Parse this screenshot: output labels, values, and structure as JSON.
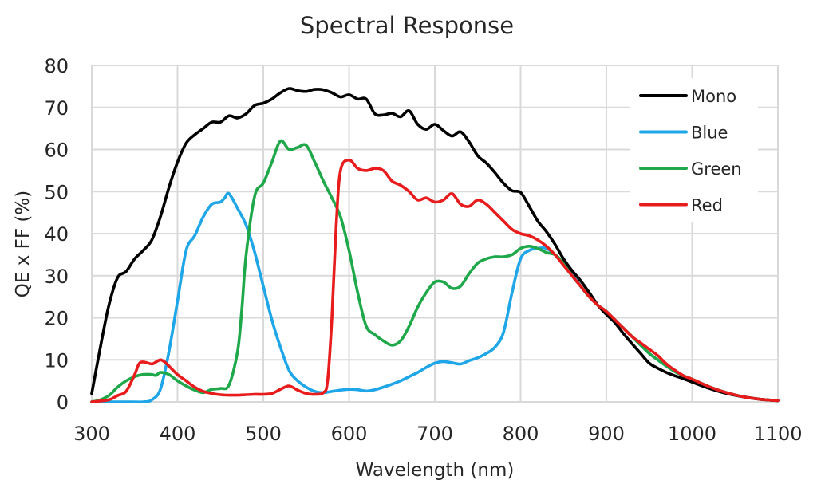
{
  "chart_data": {
    "type": "line",
    "title": "Spectral Response",
    "xlabel": "Wavelength (nm)",
    "ylabel": "QE x FF (%)",
    "xlim": [
      300,
      1100
    ],
    "ylim": [
      0,
      80
    ],
    "xticks": [
      "300",
      "400",
      "500",
      "600",
      "700",
      "800",
      "900",
      "1000",
      "1100"
    ],
    "yticks": [
      "0",
      "10",
      "20",
      "30",
      "40",
      "50",
      "60",
      "70",
      "80"
    ],
    "grid": true,
    "legend_position": "top-right",
    "series": [
      {
        "name": "Mono",
        "color": "#000000",
        "x": [
          300,
          310,
          320,
          330,
          340,
          350,
          360,
          370,
          380,
          390,
          400,
          410,
          420,
          430,
          440,
          450,
          460,
          470,
          480,
          490,
          500,
          510,
          520,
          530,
          540,
          550,
          560,
          570,
          580,
          590,
          600,
          610,
          620,
          630,
          640,
          650,
          660,
          670,
          680,
          690,
          700,
          710,
          720,
          730,
          740,
          750,
          760,
          770,
          780,
          790,
          800,
          810,
          820,
          830,
          840,
          850,
          860,
          870,
          880,
          890,
          900,
          910,
          920,
          930,
          940,
          950,
          960,
          970,
          980,
          990,
          1000,
          1020,
          1040,
          1060,
          1080,
          1100
        ],
        "y": [
          2,
          13,
          23,
          29.5,
          31,
          34,
          36,
          38.5,
          44,
          51,
          57,
          61.5,
          63.5,
          65,
          66.5,
          66.5,
          68,
          67.5,
          68.5,
          70.5,
          71,
          72,
          73.5,
          74.5,
          74,
          73.8,
          74.3,
          74.2,
          73.5,
          72.5,
          73,
          72,
          72,
          68.5,
          68.2,
          68.6,
          67.8,
          69.2,
          66,
          64.8,
          66,
          64.5,
          63.2,
          64.2,
          61.8,
          58.5,
          56.8,
          54.5,
          52,
          50.2,
          49.8,
          46.5,
          43,
          40.5,
          37.5,
          34,
          31.2,
          28.8,
          26,
          23,
          20.8,
          18.8,
          16.2,
          13.8,
          11.5,
          9.2,
          8,
          7,
          6.2,
          5.5,
          4.7,
          3.2,
          2,
          1.2,
          0.6,
          0.3
        ]
      },
      {
        "name": "Blue",
        "color": "#1EA6E8",
        "x": [
          300,
          320,
          340,
          360,
          370,
          380,
          390,
          400,
          410,
          420,
          430,
          440,
          450,
          455,
          460,
          470,
          480,
          490,
          500,
          510,
          520,
          530,
          540,
          550,
          560,
          570,
          580,
          590,
          600,
          610,
          620,
          630,
          640,
          650,
          660,
          670,
          680,
          690,
          700,
          710,
          720,
          730,
          740,
          750,
          760,
          770,
          780,
          790,
          800,
          810,
          820,
          830,
          840,
          850,
          860,
          870,
          880,
          890,
          900,
          910,
          920,
          930,
          940,
          950,
          960,
          970,
          980,
          990,
          1000,
          1020,
          1040,
          1060,
          1080,
          1100
        ],
        "y": [
          0,
          0,
          0,
          0,
          0.5,
          3,
          12,
          24,
          36,
          39.5,
          44,
          47,
          47.5,
          48.5,
          49.5,
          46,
          42,
          35.5,
          27.5,
          19.5,
          13,
          7.5,
          5,
          3.5,
          2.5,
          2.2,
          2.5,
          2.8,
          3,
          2.9,
          2.6,
          2.9,
          3.5,
          4.2,
          5,
          6,
          7,
          8.2,
          9.2,
          9.6,
          9.3,
          9,
          9.8,
          10.5,
          11.5,
          13,
          16.5,
          26,
          34,
          36,
          36.5,
          36.5,
          35,
          33,
          30.5,
          27.5,
          25,
          23,
          21.5,
          19.5,
          17.5,
          15.5,
          13.5,
          11.5,
          10,
          8.5,
          7.2,
          6.2,
          5.4,
          3.6,
          2.2,
          1.2,
          0.6,
          0.3
        ]
      },
      {
        "name": "Green",
        "color": "#1FA84A",
        "x": [
          300,
          310,
          320,
          330,
          340,
          350,
          360,
          370,
          375,
          380,
          390,
          400,
          410,
          420,
          430,
          440,
          450,
          460,
          470,
          475,
          480,
          490,
          500,
          510,
          520,
          530,
          540,
          550,
          560,
          570,
          580,
          590,
          600,
          610,
          620,
          630,
          640,
          650,
          660,
          670,
          680,
          690,
          700,
          710,
          720,
          730,
          740,
          750,
          760,
          770,
          780,
          790,
          800,
          810,
          820,
          830,
          840,
          850,
          860,
          870,
          880,
          890,
          900,
          910,
          920,
          930,
          940,
          950,
          960,
          970,
          980,
          990,
          1000,
          1020,
          1040,
          1060,
          1080,
          1100
        ],
        "y": [
          0,
          0.5,
          1.5,
          3.5,
          5,
          6,
          6.5,
          6.5,
          6.3,
          7,
          6.5,
          5,
          3.8,
          2.8,
          2.2,
          3,
          3.2,
          4,
          12,
          22,
          35,
          49,
          52,
          57,
          62,
          60,
          60.5,
          61,
          57,
          52.5,
          48.5,
          44,
          36,
          26,
          18,
          16,
          14.5,
          13.5,
          14.5,
          18,
          22.5,
          26,
          28.5,
          28.5,
          27,
          27.5,
          30.5,
          33,
          34,
          34.5,
          34.5,
          35,
          36.5,
          37,
          36.5,
          35.5,
          35,
          33,
          30,
          27.5,
          25,
          23,
          21.5,
          19.5,
          17.5,
          15.5,
          13.5,
          11.5,
          10,
          8.5,
          7.2,
          6.2,
          5.4,
          3.6,
          2.2,
          1.2,
          0.6,
          0.3
        ]
      },
      {
        "name": "Red",
        "color": "#E81C1C",
        "x": [
          300,
          320,
          330,
          340,
          350,
          355,
          360,
          370,
          375,
          380,
          385,
          390,
          400,
          410,
          420,
          430,
          440,
          450,
          460,
          470,
          480,
          490,
          500,
          510,
          520,
          530,
          540,
          550,
          560,
          570,
          575,
          580,
          585,
          590,
          600,
          610,
          620,
          630,
          640,
          650,
          660,
          670,
          680,
          690,
          700,
          710,
          720,
          730,
          740,
          750,
          760,
          770,
          780,
          790,
          800,
          810,
          820,
          830,
          840,
          850,
          860,
          870,
          880,
          890,
          900,
          910,
          920,
          930,
          940,
          950,
          960,
          970,
          980,
          990,
          1000,
          1020,
          1040,
          1060,
          1080,
          1100
        ],
        "y": [
          0,
          0.5,
          1.5,
          2.5,
          6.5,
          9,
          9.5,
          9,
          9.5,
          10,
          9.5,
          8.5,
          6.5,
          5,
          3.5,
          2.5,
          2,
          1.7,
          1.6,
          1.6,
          1.7,
          1.8,
          1.8,
          2,
          3,
          3.8,
          2.8,
          2,
          1.8,
          2.2,
          5,
          20,
          42,
          55,
          57.5,
          55.5,
          55,
          55.5,
          55,
          52.5,
          51.5,
          50,
          48,
          48.5,
          47.5,
          48,
          49.5,
          47,
          46.5,
          48,
          47,
          45,
          43,
          41,
          40,
          39.5,
          38.5,
          37,
          35,
          32.5,
          30,
          27.5,
          25,
          23,
          21.5,
          19.5,
          17.5,
          15.5,
          14,
          12.5,
          11,
          9,
          7.5,
          6.2,
          5.4,
          3.6,
          2.2,
          1.2,
          0.6,
          0.3
        ]
      }
    ]
  }
}
